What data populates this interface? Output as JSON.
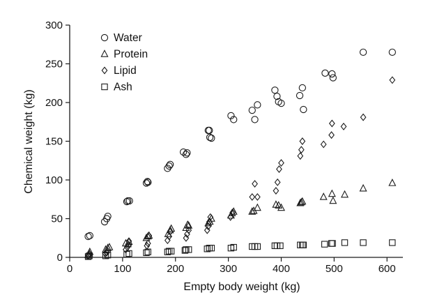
{
  "chart_data": {
    "type": "scatter",
    "title": "",
    "xlabel": "Empty body weight (kg)",
    "ylabel": "Chemical weight (kg)",
    "xlim": [
      0,
      630
    ],
    "ylim": [
      0,
      300
    ],
    "xticks": [
      0,
      100,
      200,
      300,
      400,
      500,
      600
    ],
    "yticks": [
      0,
      50,
      100,
      150,
      200,
      250,
      300
    ],
    "grid": false,
    "legend_position": "top-left",
    "series": [
      {
        "name": "Water",
        "marker": "circle",
        "points": [
          [
            35,
            27
          ],
          [
            38,
            28
          ],
          [
            66,
            46
          ],
          [
            70,
            50
          ],
          [
            72,
            53
          ],
          [
            108,
            72
          ],
          [
            110,
            73
          ],
          [
            113,
            73
          ],
          [
            145,
            96
          ],
          [
            147,
            98
          ],
          [
            148,
            97
          ],
          [
            185,
            115
          ],
          [
            188,
            118
          ],
          [
            190,
            120
          ],
          [
            215,
            136
          ],
          [
            220,
            133
          ],
          [
            222,
            135
          ],
          [
            262,
            164
          ],
          [
            264,
            164
          ],
          [
            265,
            155
          ],
          [
            268,
            154
          ],
          [
            305,
            183
          ],
          [
            310,
            178
          ],
          [
            345,
            190
          ],
          [
            350,
            178
          ],
          [
            355,
            197
          ],
          [
            388,
            216
          ],
          [
            392,
            208
          ],
          [
            395,
            201
          ],
          [
            400,
            199
          ],
          [
            435,
            209
          ],
          [
            440,
            219
          ],
          [
            442,
            191
          ],
          [
            483,
            238
          ],
          [
            496,
            237
          ],
          [
            498,
            232
          ],
          [
            555,
            265
          ],
          [
            610,
            265
          ]
        ]
      },
      {
        "name": "Protein",
        "marker": "triangle",
        "points": [
          [
            35,
            3
          ],
          [
            37,
            5
          ],
          [
            38,
            7
          ],
          [
            68,
            10
          ],
          [
            72,
            12
          ],
          [
            75,
            13
          ],
          [
            106,
            18
          ],
          [
            110,
            17
          ],
          [
            112,
            20
          ],
          [
            145,
            25
          ],
          [
            148,
            27
          ],
          [
            150,
            28
          ],
          [
            186,
            30
          ],
          [
            190,
            35
          ],
          [
            192,
            37
          ],
          [
            220,
            38
          ],
          [
            223,
            42
          ],
          [
            225,
            41
          ],
          [
            262,
            44
          ],
          [
            265,
            46
          ],
          [
            268,
            50
          ],
          [
            305,
            54
          ],
          [
            307,
            57
          ],
          [
            310,
            59
          ],
          [
            345,
            59
          ],
          [
            348,
            60
          ],
          [
            355,
            64
          ],
          [
            390,
            68
          ],
          [
            395,
            67
          ],
          [
            400,
            64
          ],
          [
            436,
            70
          ],
          [
            438,
            71
          ],
          [
            440,
            72
          ],
          [
            480,
            78
          ],
          [
            496,
            82
          ],
          [
            498,
            73
          ],
          [
            520,
            81
          ],
          [
            555,
            89
          ],
          [
            610,
            96
          ]
        ]
      },
      {
        "name": "Lipid",
        "marker": "diamond",
        "points": [
          [
            35,
            2
          ],
          [
            36,
            3
          ],
          [
            38,
            4
          ],
          [
            67,
            5
          ],
          [
            70,
            6
          ],
          [
            72,
            8
          ],
          [
            106,
            10
          ],
          [
            109,
            13
          ],
          [
            112,
            16
          ],
          [
            112,
            21
          ],
          [
            146,
            15
          ],
          [
            148,
            18
          ],
          [
            150,
            28
          ],
          [
            185,
            22
          ],
          [
            188,
            27
          ],
          [
            190,
            33
          ],
          [
            220,
            25
          ],
          [
            222,
            30
          ],
          [
            225,
            35
          ],
          [
            260,
            35
          ],
          [
            262,
            40
          ],
          [
            264,
            46
          ],
          [
            266,
            52
          ],
          [
            304,
            52
          ],
          [
            308,
            58
          ],
          [
            345,
            78
          ],
          [
            350,
            95
          ],
          [
            355,
            78
          ],
          [
            390,
            86
          ],
          [
            393,
            97
          ],
          [
            396,
            114
          ],
          [
            400,
            122
          ],
          [
            436,
            131
          ],
          [
            438,
            139
          ],
          [
            440,
            150
          ],
          [
            480,
            146
          ],
          [
            495,
            158
          ],
          [
            496,
            173
          ],
          [
            518,
            169
          ],
          [
            555,
            181
          ],
          [
            610,
            229
          ]
        ]
      },
      {
        "name": "Ash",
        "marker": "square",
        "points": [
          [
            35,
            1
          ],
          [
            37,
            2
          ],
          [
            68,
            2
          ],
          [
            72,
            3
          ],
          [
            108,
            4
          ],
          [
            112,
            5
          ],
          [
            145,
            6
          ],
          [
            148,
            7
          ],
          [
            185,
            7
          ],
          [
            188,
            8
          ],
          [
            192,
            8
          ],
          [
            218,
            9
          ],
          [
            220,
            10
          ],
          [
            225,
            10
          ],
          [
            260,
            11
          ],
          [
            264,
            12
          ],
          [
            268,
            12
          ],
          [
            305,
            12
          ],
          [
            310,
            13
          ],
          [
            345,
            14
          ],
          [
            350,
            14
          ],
          [
            355,
            14
          ],
          [
            388,
            15
          ],
          [
            392,
            15
          ],
          [
            398,
            15
          ],
          [
            436,
            16
          ],
          [
            440,
            16
          ],
          [
            442,
            16
          ],
          [
            482,
            17
          ],
          [
            495,
            18
          ],
          [
            497,
            18
          ],
          [
            520,
            19
          ],
          [
            555,
            19
          ],
          [
            610,
            19
          ]
        ]
      }
    ]
  }
}
